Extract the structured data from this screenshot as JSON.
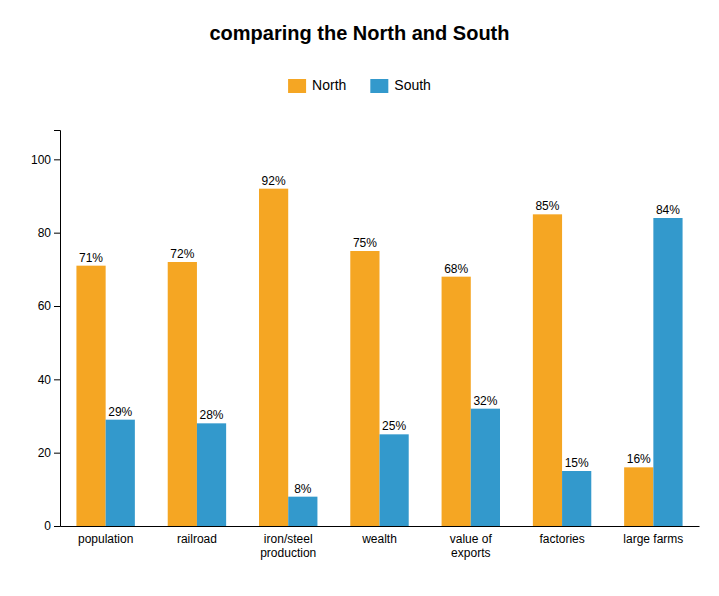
{
  "chart_data": {
    "type": "bar",
    "title": "comparing the North and South",
    "categories": [
      "population",
      "railroad",
      "iron/steel\nproduction",
      "wealth",
      "value of\nexports",
      "factories",
      "large farms"
    ],
    "series": [
      {
        "name": "North",
        "color": "#F5A623",
        "values": [
          71,
          72,
          92,
          75,
          68,
          85,
          16
        ],
        "value_labels": [
          "71%",
          "72%",
          "92%",
          "75%",
          "68%",
          "85%",
          "16%"
        ]
      },
      {
        "name": "South",
        "color": "#3399CC",
        "values": [
          29,
          28,
          8,
          25,
          32,
          15,
          84
        ],
        "value_labels": [
          "29%",
          "28%",
          "8%",
          "25%",
          "32%",
          "15%",
          "84%"
        ]
      }
    ],
    "ylim": [
      0,
      108
    ],
    "yticks": [
      0,
      20,
      40,
      60,
      80,
      100
    ],
    "data_labels": true,
    "grid": false,
    "legend": "top"
  }
}
